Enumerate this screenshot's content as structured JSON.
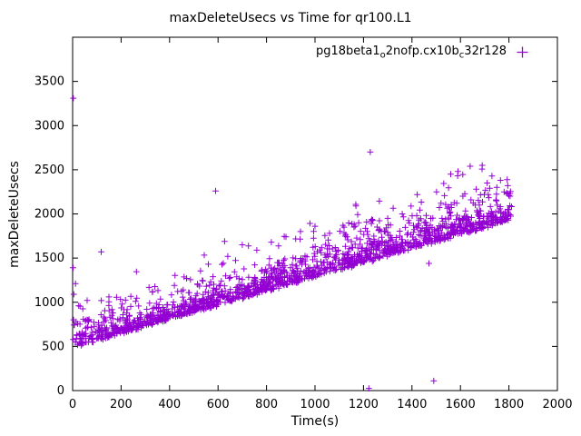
{
  "title": "maxDeleteUsecs vs Time for qr100.L1",
  "axes": {
    "xlabel": "Time(s)",
    "ylabel": "maxDeleteUsecs"
  },
  "legend": {
    "p1": "pg18beta1",
    "sub1": "o",
    "p2": "2nofp.cx10b",
    "sub2": "c",
    "p3": "32r128"
  },
  "chart_data": {
    "type": "scatter",
    "title": "maxDeleteUsecs vs Time for qr100.L1",
    "xlabel": "Time(s)",
    "ylabel": "maxDeleteUsecs",
    "xlim": [
      0,
      2000
    ],
    "ylim": [
      0,
      4000
    ],
    "xticks": [
      0,
      200,
      400,
      600,
      800,
      1000,
      1200,
      1400,
      1600,
      1800,
      2000
    ],
    "yticks": [
      0,
      500,
      1000,
      1500,
      2000,
      2500,
      3000,
      3500
    ],
    "grid": false,
    "color": "#9400d3",
    "marker": "plus",
    "legend_position": "top-right-inside",
    "series": [
      {
        "name": "pg18beta1_o2nofp.cx10b_c32r128",
        "trend": "dense rising band of points from ~500 usecs at t=0 to ~2100 usecs at t=1800, tight lower edge with fuzzier upper edge",
        "generator": {
          "seed": 1234,
          "n": 1600,
          "t_max": 1812,
          "base_intercept": 500,
          "base_slope": 0.8,
          "spread": 110,
          "tail_prob": 0.05,
          "tail_scale": 380
        },
        "outliers": [
          [
            3,
            3310
          ],
          [
            2,
            1390
          ],
          [
            5,
            1090
          ],
          [
            12,
            1210
          ],
          [
            25,
            960
          ],
          [
            60,
            1020
          ],
          [
            118,
            1570
          ],
          [
            150,
            1060
          ],
          [
            205,
            980
          ],
          [
            260,
            1010
          ],
          [
            330,
            1120
          ],
          [
            420,
            1190
          ],
          [
            470,
            1270
          ],
          [
            560,
            1430
          ],
          [
            590,
            2260
          ],
          [
            640,
            1520
          ],
          [
            700,
            1650
          ],
          [
            760,
            1590
          ],
          [
            820,
            1680
          ],
          [
            880,
            1740
          ],
          [
            940,
            1800
          ],
          [
            1000,
            1860
          ],
          [
            1060,
            1780
          ],
          [
            1120,
            1850
          ],
          [
            1180,
            1900
          ],
          [
            1228,
            2700
          ],
          [
            1222,
            25
          ],
          [
            1300,
            1950
          ],
          [
            1360,
            2000
          ],
          [
            1420,
            1980
          ],
          [
            1470,
            1440
          ],
          [
            1490,
            110
          ],
          [
            1520,
            2120
          ],
          [
            1560,
            2450
          ],
          [
            1590,
            2480
          ],
          [
            1610,
            2200
          ],
          [
            1640,
            2540
          ],
          [
            1665,
            2280
          ],
          [
            1690,
            2550
          ],
          [
            1710,
            2350
          ],
          [
            1730,
            2430
          ],
          [
            1750,
            2300
          ],
          [
            1765,
            2380
          ],
          [
            1780,
            2250
          ],
          [
            1795,
            2320
          ],
          [
            1805,
            2200
          ]
        ]
      }
    ]
  }
}
